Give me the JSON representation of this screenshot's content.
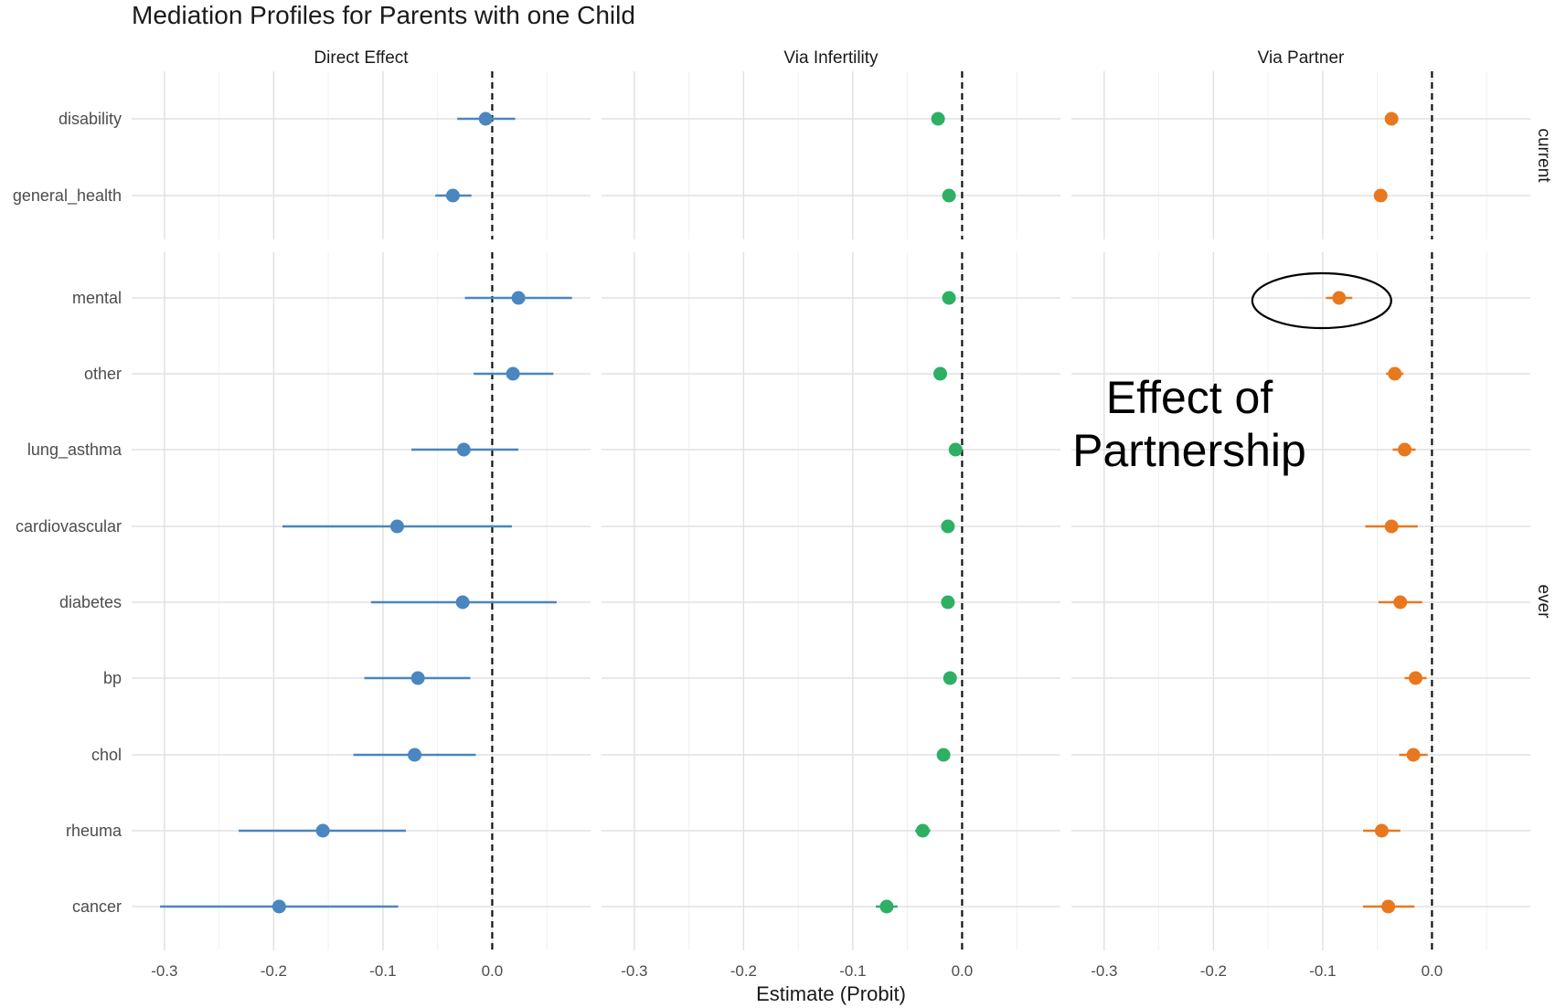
{
  "chart_data": {
    "type": "scatter",
    "title": "Mediation Profiles for Parents with one Child",
    "xlabel": "Estimate (Probit)",
    "ylabel": "",
    "xlim": [
      -0.33,
      0.09
    ],
    "x_ticks": [
      -0.3,
      -0.2,
      -0.1,
      0.0
    ],
    "x_tick_labels": [
      "-0.3",
      "-0.2",
      "-0.1",
      "0.0"
    ],
    "reference_line": 0.0,
    "grid": true,
    "facets_columns": [
      "Direct Effect",
      "Via Infertility",
      "Via Partner"
    ],
    "facets_rows": [
      {
        "name": "current",
        "categories": [
          "disability",
          "general_health"
        ]
      },
      {
        "name": "ever",
        "categories": [
          "mental",
          "other",
          "lung_asthma",
          "cardiovascular",
          "diabetes",
          "bp",
          "chol",
          "rheuma",
          "cancer"
        ]
      }
    ],
    "colors": {
      "Direct Effect": "#4a86c0",
      "Via Infertility": "#2eb064",
      "Via Partner": "#e8781e"
    },
    "series": [
      {
        "name": "Direct Effect",
        "points": [
          {
            "category": "disability",
            "estimate": -0.006,
            "low": -0.032,
            "high": 0.021
          },
          {
            "category": "general_health",
            "estimate": -0.036,
            "low": -0.052,
            "high": -0.019
          },
          {
            "category": "mental",
            "estimate": 0.024,
            "low": -0.025,
            "high": 0.073
          },
          {
            "category": "other",
            "estimate": 0.019,
            "low": -0.017,
            "high": 0.056
          },
          {
            "category": "lung_asthma",
            "estimate": -0.026,
            "low": -0.074,
            "high": 0.024
          },
          {
            "category": "cardiovascular",
            "estimate": -0.087,
            "low": -0.192,
            "high": 0.018
          },
          {
            "category": "diabetes",
            "estimate": -0.027,
            "low": -0.111,
            "high": 0.059
          },
          {
            "category": "bp",
            "estimate": -0.068,
            "low": -0.117,
            "high": -0.02
          },
          {
            "category": "chol",
            "estimate": -0.071,
            "low": -0.127,
            "high": -0.015
          },
          {
            "category": "rheuma",
            "estimate": -0.155,
            "low": -0.232,
            "high": -0.079
          },
          {
            "category": "cancer",
            "estimate": -0.195,
            "low": -0.304,
            "high": -0.086
          }
        ]
      },
      {
        "name": "Via Infertility",
        "points": [
          {
            "category": "disability",
            "estimate": -0.022,
            "low": -0.024,
            "high": -0.02
          },
          {
            "category": "general_health",
            "estimate": -0.012,
            "low": -0.014,
            "high": -0.01
          },
          {
            "category": "mental",
            "estimate": -0.012,
            "low": -0.014,
            "high": -0.01
          },
          {
            "category": "other",
            "estimate": -0.02,
            "low": -0.022,
            "high": -0.018
          },
          {
            "category": "lung_asthma",
            "estimate": -0.006,
            "low": -0.008,
            "high": -0.004
          },
          {
            "category": "cardiovascular",
            "estimate": -0.013,
            "low": -0.019,
            "high": -0.007
          },
          {
            "category": "diabetes",
            "estimate": -0.013,
            "low": -0.019,
            "high": -0.007
          },
          {
            "category": "bp",
            "estimate": -0.011,
            "low": -0.013,
            "high": -0.009
          },
          {
            "category": "chol",
            "estimate": -0.017,
            "low": -0.021,
            "high": -0.013
          },
          {
            "category": "rheuma",
            "estimate": -0.036,
            "low": -0.043,
            "high": -0.029
          },
          {
            "category": "cancer",
            "estimate": -0.069,
            "low": -0.079,
            "high": -0.059
          }
        ]
      },
      {
        "name": "Via Partner",
        "points": [
          {
            "category": "disability",
            "estimate": -0.037,
            "low": -0.039,
            "high": -0.035
          },
          {
            "category": "general_health",
            "estimate": -0.047,
            "low": -0.049,
            "high": -0.045
          },
          {
            "category": "mental",
            "estimate": -0.085,
            "low": -0.097,
            "high": -0.073
          },
          {
            "category": "other",
            "estimate": -0.034,
            "low": -0.042,
            "high": -0.026
          },
          {
            "category": "lung_asthma",
            "estimate": -0.025,
            "low": -0.036,
            "high": -0.015
          },
          {
            "category": "cardiovascular",
            "estimate": -0.037,
            "low": -0.061,
            "high": -0.013
          },
          {
            "category": "diabetes",
            "estimate": -0.029,
            "low": -0.049,
            "high": -0.009
          },
          {
            "category": "bp",
            "estimate": -0.015,
            "low": -0.025,
            "high": -0.005
          },
          {
            "category": "chol",
            "estimate": -0.017,
            "low": -0.03,
            "high": -0.004
          },
          {
            "category": "rheuma",
            "estimate": -0.046,
            "low": -0.063,
            "high": -0.029
          },
          {
            "category": "cancer",
            "estimate": -0.04,
            "low": -0.063,
            "high": -0.016
          }
        ]
      }
    ],
    "annotations": [
      {
        "text_lines": [
          "Effect of",
          "Partnership"
        ],
        "target_facet": "Via Partner",
        "target_category": "mental",
        "marker": "ellipse"
      }
    ]
  }
}
